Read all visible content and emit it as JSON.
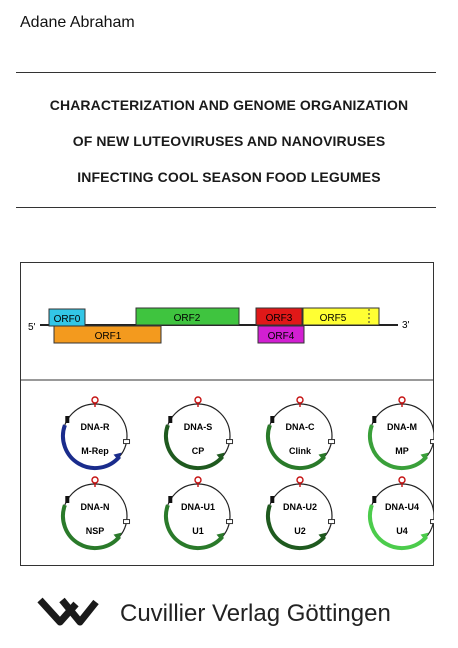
{
  "author": "Adane Abraham",
  "title_lines": [
    "CHARACTERIZATION AND GENOME ORGANIZATION",
    "OF NEW LUTEOVIRUSES AND NANOVIRUSES",
    "INFECTING COOL SEASON FOOD LEGUMES"
  ],
  "genome_map": {
    "five_prime": "5'",
    "three_prime": "3'",
    "orfs": [
      {
        "label": "ORF0",
        "color": "#33c6e6"
      },
      {
        "label": "ORF1",
        "color": "#f39a1e"
      },
      {
        "label": "ORF2",
        "color": "#3fc43f"
      },
      {
        "label": "ORF3",
        "color": "#e01818"
      },
      {
        "label": "ORF4",
        "color": "#d21fd2"
      },
      {
        "label": "ORF5",
        "color": "#ffff33"
      }
    ]
  },
  "circles": [
    {
      "name": "DNA-R",
      "gene": "M-Rep",
      "arc_color": "#1a2c8c"
    },
    {
      "name": "DNA-S",
      "gene": "CP",
      "arc_color": "#1f5a1f"
    },
    {
      "name": "DNA-C",
      "gene": "Clink",
      "arc_color": "#2a7a2a"
    },
    {
      "name": "DNA-M",
      "gene": "MP",
      "arc_color": "#3aa03a"
    },
    {
      "name": "DNA-N",
      "gene": "NSP",
      "arc_color": "#2a7a2a"
    },
    {
      "name": "DNA-U1",
      "gene": "U1",
      "arc_color": "#2a7a2a"
    },
    {
      "name": "DNA-U2",
      "gene": "U2",
      "arc_color": "#1f5a1f"
    },
    {
      "name": "DNA-U4",
      "gene": "U4",
      "arc_color": "#4ccc4c"
    }
  ],
  "publisher": "Cuvillier Verlag Göttingen"
}
